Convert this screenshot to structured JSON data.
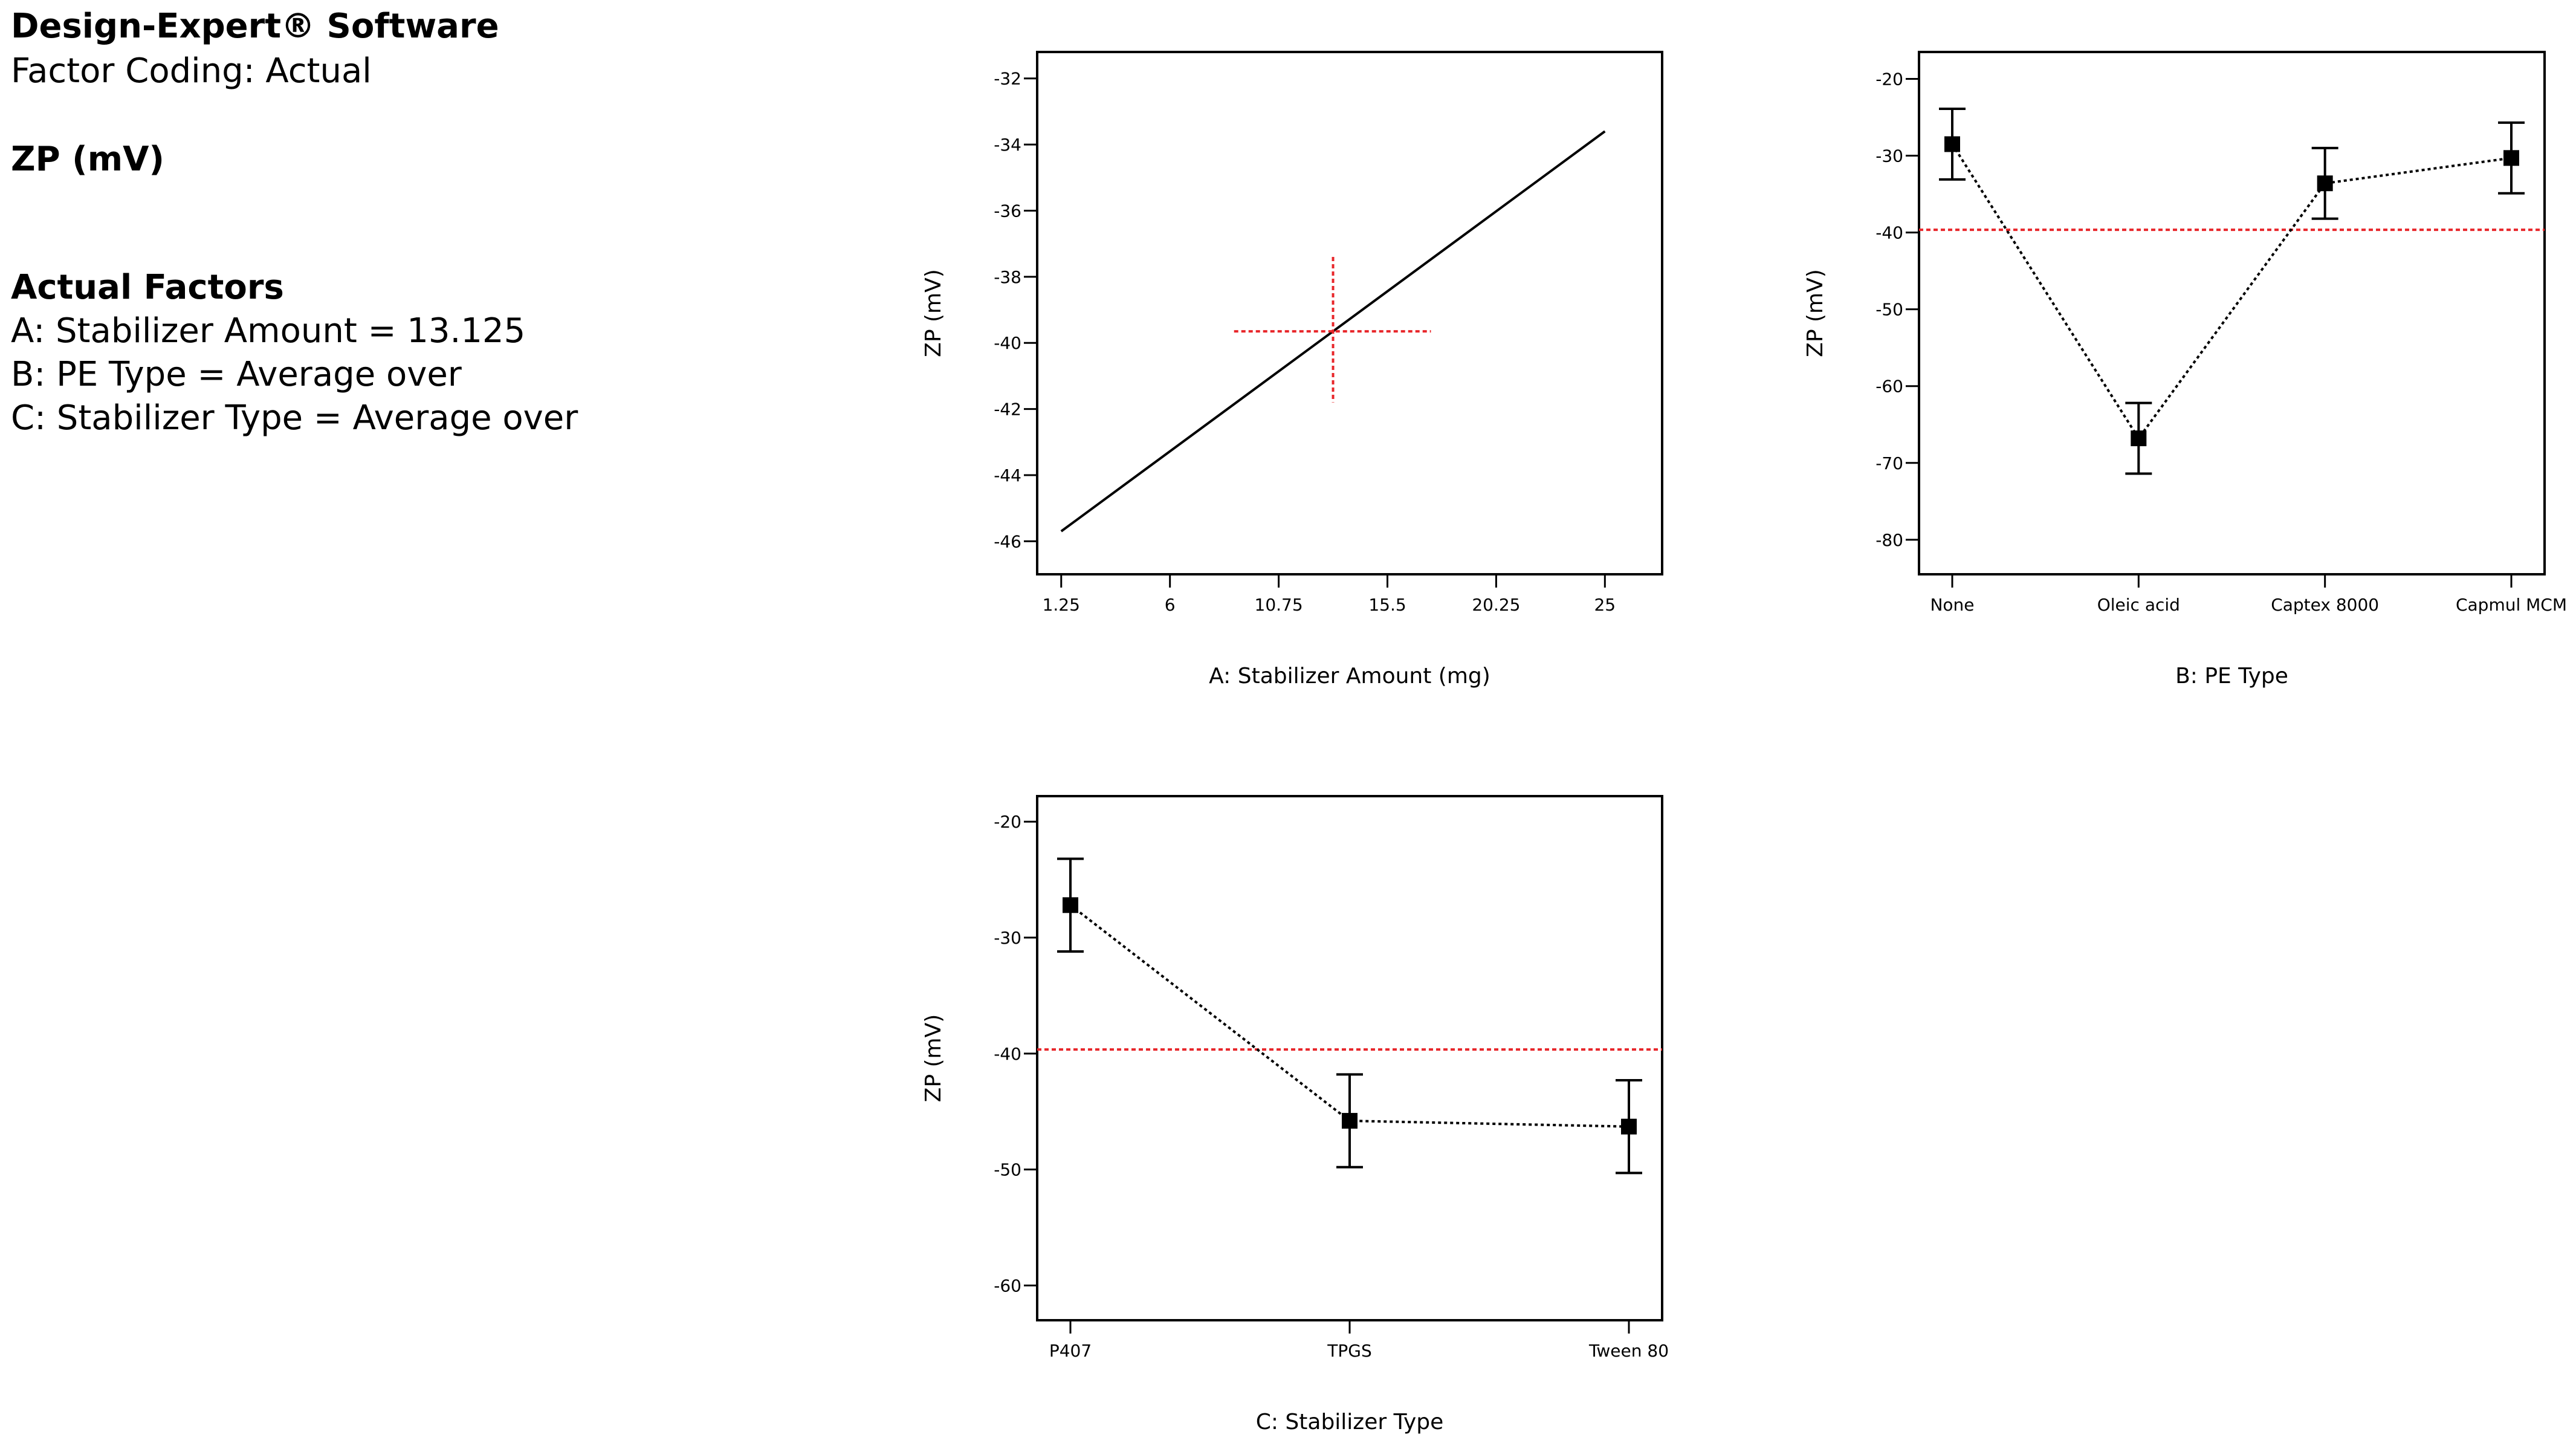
{
  "info": {
    "software": "Design-Expert® Software",
    "coding": "Factor Coding: Actual",
    "response": "ZP (mV)",
    "actual_factors_heading": "Actual Factors",
    "factors": [
      "A: Stabilizer Amount = 13.125",
      "B: PE Type = Average over",
      "C: Stabilizer Type = Average over"
    ]
  },
  "colors": {
    "reference": "#e8262a",
    "line": "#000000"
  },
  "chart_data": [
    {
      "id": "plotA",
      "type": "line",
      "xlabel": "A: Stabilizer Amount (mg)",
      "ylabel": "ZP (mV)",
      "xlim": [
        0.2,
        27.5
      ],
      "ylim": [
        -47.0,
        -31.2
      ],
      "xticks": [
        1.25,
        6,
        10.75,
        15.5,
        20.25,
        25
      ],
      "xtick_labels": [
        "1.25",
        "6",
        "10.75",
        "15.5",
        "20.25",
        "25"
      ],
      "yticks": [
        -32,
        -34,
        -36,
        -38,
        -40,
        -42,
        -44,
        -46
      ],
      "line": {
        "x": [
          1.25,
          25
        ],
        "y": [
          -45.7,
          -33.6
        ]
      },
      "crosshair": {
        "x": 13.125,
        "y": -39.65,
        "x_span": [
          8.8,
          17.4
        ],
        "y_span": [
          -37.4,
          -41.8
        ]
      }
    },
    {
      "id": "plotB",
      "type": "line",
      "xlabel": "B: PE Type",
      "ylabel": "ZP (mV)",
      "categories": [
        "None",
        "Oleic acid",
        "Captex 8000",
        "Capmul MCM"
      ],
      "ylim": [
        -84.5,
        -16.5
      ],
      "yticks": [
        -20,
        -30,
        -40,
        -50,
        -60,
        -70,
        -80
      ],
      "values": [
        -28.5,
        -66.8,
        -33.6,
        -30.3
      ],
      "errors": [
        4.6,
        4.6,
        4.6,
        4.6
      ],
      "reference_y": -39.65
    },
    {
      "id": "plotC",
      "type": "line",
      "xlabel": "C: Stabilizer Type",
      "ylabel": "ZP (mV)",
      "categories": [
        "P407",
        "TPGS",
        "Tween 80"
      ],
      "ylim": [
        -63.0,
        -17.8
      ],
      "yticks": [
        -20,
        -30,
        -40,
        -50,
        -60
      ],
      "values": [
        -27.2,
        -45.8,
        -46.3
      ],
      "errors": [
        4.0,
        4.0,
        4.0
      ],
      "reference_y": -39.65
    }
  ]
}
